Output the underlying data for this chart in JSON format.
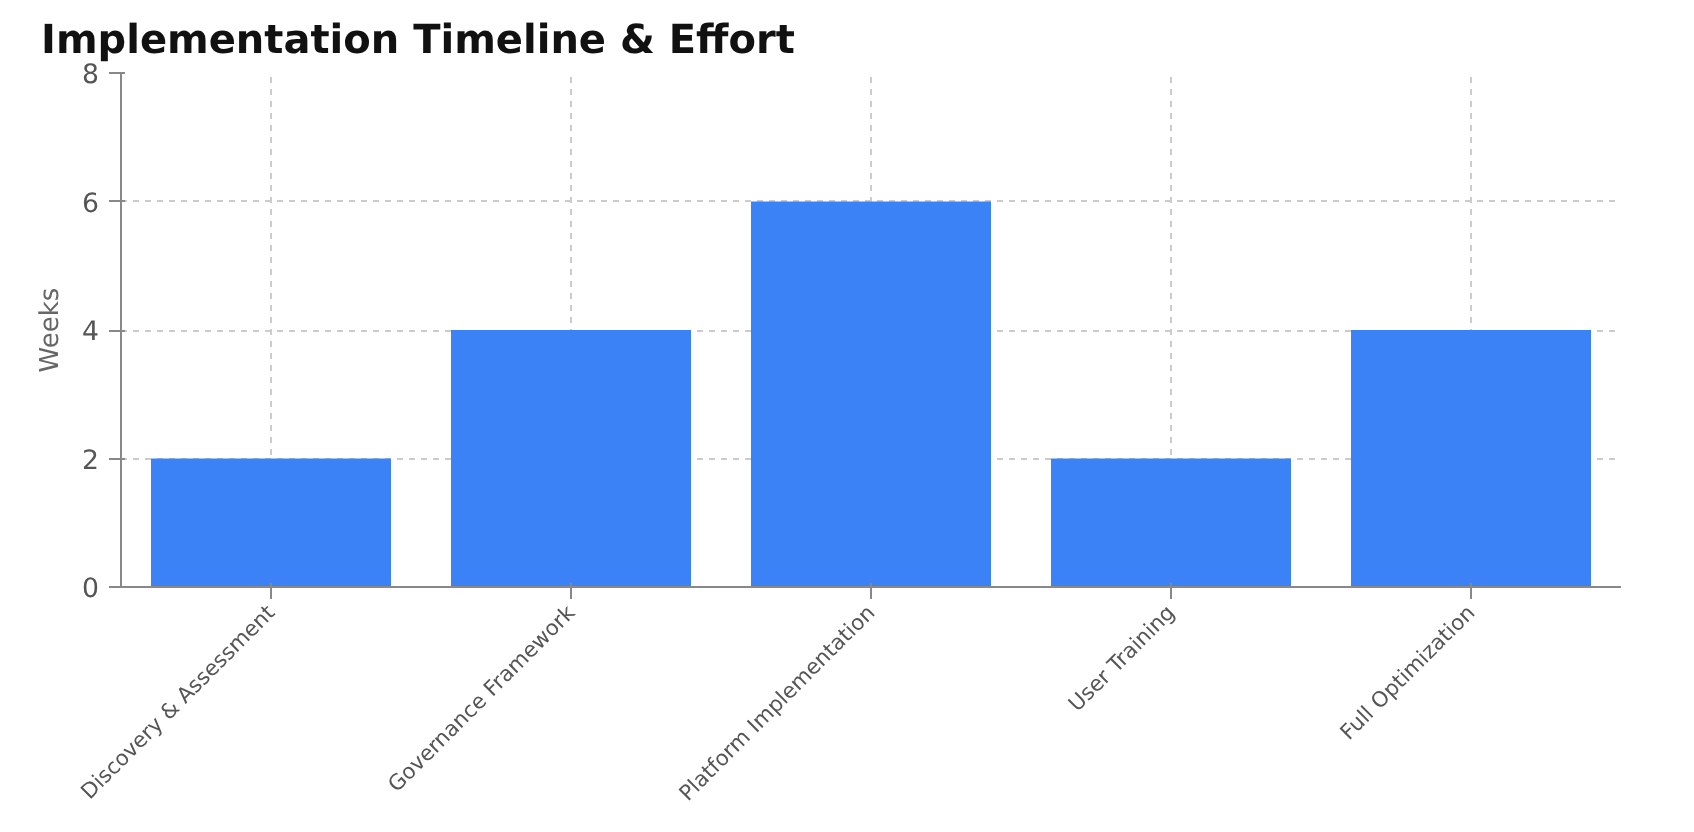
{
  "chart_data": {
    "type": "bar",
    "title": "Implementation Timeline & Effort",
    "ylabel": "Weeks",
    "categories": [
      "Discovery & Assessment",
      "Governance Framework",
      "Platform Implementation",
      "User Training",
      "Full Optimization"
    ],
    "values": [
      2,
      4,
      6,
      2,
      4
    ],
    "color": "#3b82f6",
    "ylim": [
      0,
      8
    ],
    "yticks": [
      0,
      2,
      4,
      6,
      8
    ],
    "grid": true
  }
}
